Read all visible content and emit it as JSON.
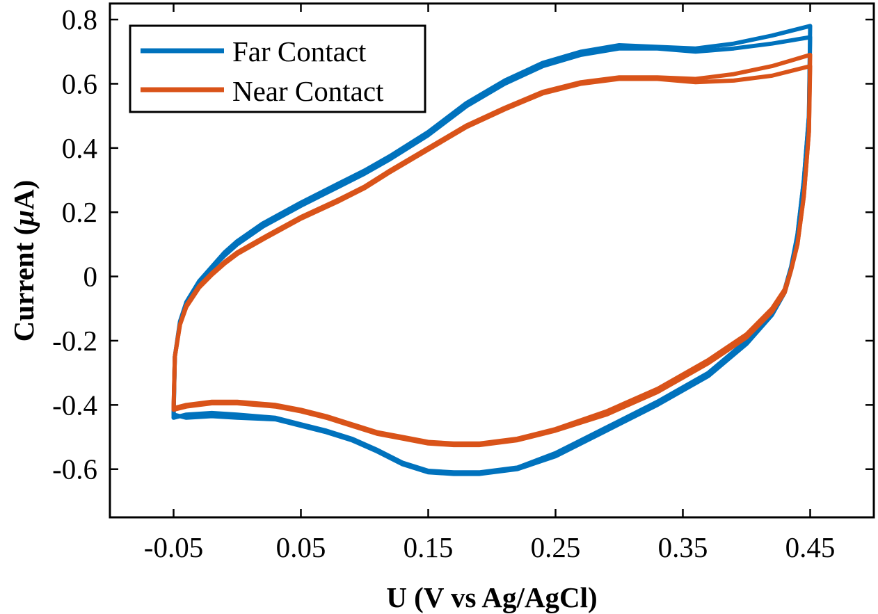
{
  "chart_data": {
    "type": "line",
    "xlabel": "U (V vs Ag/AgCl)",
    "ylabel_prefix": "Current (",
    "ylabel_mu": "μ",
    "ylabel_suffix": "A)",
    "xlim": [
      -0.1,
      0.5
    ],
    "ylim": [
      -0.75,
      0.85
    ],
    "x_ticks": [
      -0.05,
      0.05,
      0.15,
      0.25,
      0.35,
      0.45
    ],
    "x_tick_labels": [
      "-0.05",
      "0.05",
      "0.15",
      "0.25",
      "0.35",
      "0.45"
    ],
    "y_ticks": [
      -0.6,
      -0.4,
      -0.2,
      0,
      0.2,
      0.4,
      0.6,
      0.8
    ],
    "y_tick_labels": [
      "-0.6",
      "-0.4",
      "-0.2",
      "0",
      "0.2",
      "0.4",
      "0.6",
      "0.8"
    ],
    "grid": false,
    "legend_position": "top-left",
    "series": [
      {
        "name": "Far Contact",
        "color": "#0072BD",
        "cycles": [
          [
            [
              -0.05,
              -0.44
            ],
            [
              -0.049,
              -0.25
            ],
            [
              -0.045,
              -0.14
            ],
            [
              -0.04,
              -0.08
            ],
            [
              -0.03,
              -0.015
            ],
            [
              -0.02,
              0.03
            ],
            [
              -0.01,
              0.075
            ],
            [
              0.0,
              0.11
            ],
            [
              0.02,
              0.165
            ],
            [
              0.05,
              0.23
            ],
            [
              0.08,
              0.29
            ],
            [
              0.1,
              0.33
            ],
            [
              0.12,
              0.375
            ],
            [
              0.15,
              0.45
            ],
            [
              0.18,
              0.54
            ],
            [
              0.21,
              0.61
            ],
            [
              0.24,
              0.665
            ],
            [
              0.27,
              0.7
            ],
            [
              0.3,
              0.72
            ],
            [
              0.33,
              0.715
            ],
            [
              0.36,
              0.71
            ],
            [
              0.39,
              0.725
            ],
            [
              0.42,
              0.75
            ],
            [
              0.45,
              0.78
            ],
            [
              0.449,
              0.5
            ],
            [
              0.445,
              0.3
            ],
            [
              0.44,
              0.13
            ],
            [
              0.435,
              0.03
            ],
            [
              0.43,
              -0.04
            ],
            [
              0.42,
              -0.11
            ],
            [
              0.4,
              -0.2
            ],
            [
              0.37,
              -0.3
            ],
            [
              0.33,
              -0.39
            ],
            [
              0.29,
              -0.47
            ],
            [
              0.25,
              -0.55
            ],
            [
              0.22,
              -0.595
            ],
            [
              0.19,
              -0.61
            ],
            [
              0.17,
              -0.61
            ],
            [
              0.15,
              -0.605
            ],
            [
              0.13,
              -0.58
            ],
            [
              0.11,
              -0.54
            ],
            [
              0.09,
              -0.505
            ],
            [
              0.07,
              -0.48
            ],
            [
              0.05,
              -0.46
            ],
            [
              0.03,
              -0.44
            ],
            [
              0.0,
              -0.43
            ],
            [
              -0.02,
              -0.425
            ],
            [
              -0.04,
              -0.43
            ],
            [
              -0.05,
              -0.44
            ]
          ],
          [
            [
              -0.05,
              -0.43
            ],
            [
              -0.049,
              -0.25
            ],
            [
              -0.045,
              -0.145
            ],
            [
              -0.04,
              -0.09
            ],
            [
              -0.03,
              -0.02
            ],
            [
              -0.02,
              0.025
            ],
            [
              -0.01,
              0.065
            ],
            [
              0.0,
              0.1
            ],
            [
              0.02,
              0.155
            ],
            [
              0.05,
              0.22
            ],
            [
              0.08,
              0.28
            ],
            [
              0.1,
              0.32
            ],
            [
              0.12,
              0.365
            ],
            [
              0.15,
              0.44
            ],
            [
              0.18,
              0.53
            ],
            [
              0.21,
              0.6
            ],
            [
              0.24,
              0.655
            ],
            [
              0.27,
              0.69
            ],
            [
              0.3,
              0.71
            ],
            [
              0.33,
              0.71
            ],
            [
              0.36,
              0.7
            ],
            [
              0.39,
              0.71
            ],
            [
              0.42,
              0.725
            ],
            [
              0.45,
              0.745
            ],
            [
              0.449,
              0.5
            ],
            [
              0.445,
              0.3
            ],
            [
              0.44,
              0.13
            ],
            [
              0.435,
              0.02
            ],
            [
              0.43,
              -0.05
            ],
            [
              0.42,
              -0.12
            ],
            [
              0.4,
              -0.21
            ],
            [
              0.37,
              -0.31
            ],
            [
              0.33,
              -0.4
            ],
            [
              0.29,
              -0.48
            ],
            [
              0.25,
              -0.56
            ],
            [
              0.22,
              -0.6
            ],
            [
              0.19,
              -0.615
            ],
            [
              0.17,
              -0.615
            ],
            [
              0.15,
              -0.61
            ],
            [
              0.13,
              -0.585
            ],
            [
              0.11,
              -0.545
            ],
            [
              0.09,
              -0.51
            ],
            [
              0.07,
              -0.485
            ],
            [
              0.05,
              -0.465
            ],
            [
              0.03,
              -0.445
            ],
            [
              0.0,
              -0.44
            ],
            [
              -0.02,
              -0.435
            ],
            [
              -0.04,
              -0.44
            ],
            [
              -0.05,
              -0.43
            ]
          ]
        ]
      },
      {
        "name": "Near Contact",
        "color": "#D95319",
        "cycles": [
          [
            [
              -0.05,
              -0.41
            ],
            [
              -0.049,
              -0.25
            ],
            [
              -0.045,
              -0.15
            ],
            [
              -0.04,
              -0.09
            ],
            [
              -0.03,
              -0.03
            ],
            [
              -0.02,
              0.01
            ],
            [
              -0.01,
              0.045
            ],
            [
              0.0,
              0.075
            ],
            [
              0.02,
              0.12
            ],
            [
              0.05,
              0.185
            ],
            [
              0.08,
              0.24
            ],
            [
              0.1,
              0.28
            ],
            [
              0.12,
              0.33
            ],
            [
              0.15,
              0.4
            ],
            [
              0.18,
              0.47
            ],
            [
              0.21,
              0.525
            ],
            [
              0.24,
              0.575
            ],
            [
              0.27,
              0.605
            ],
            [
              0.3,
              0.62
            ],
            [
              0.33,
              0.62
            ],
            [
              0.36,
              0.615
            ],
            [
              0.39,
              0.63
            ],
            [
              0.42,
              0.655
            ],
            [
              0.45,
              0.69
            ],
            [
              0.449,
              0.45
            ],
            [
              0.445,
              0.25
            ],
            [
              0.44,
              0.1
            ],
            [
              0.435,
              0.02
            ],
            [
              0.43,
              -0.04
            ],
            [
              0.42,
              -0.1
            ],
            [
              0.4,
              -0.18
            ],
            [
              0.37,
              -0.26
            ],
            [
              0.33,
              -0.35
            ],
            [
              0.29,
              -0.42
            ],
            [
              0.25,
              -0.475
            ],
            [
              0.22,
              -0.505
            ],
            [
              0.19,
              -0.52
            ],
            [
              0.17,
              -0.52
            ],
            [
              0.15,
              -0.515
            ],
            [
              0.13,
              -0.5
            ],
            [
              0.11,
              -0.485
            ],
            [
              0.09,
              -0.46
            ],
            [
              0.07,
              -0.435
            ],
            [
              0.05,
              -0.415
            ],
            [
              0.03,
              -0.4
            ],
            [
              0.0,
              -0.39
            ],
            [
              -0.02,
              -0.39
            ],
            [
              -0.04,
              -0.4
            ],
            [
              -0.05,
              -0.41
            ]
          ],
          [
            [
              -0.05,
              -0.415
            ],
            [
              -0.049,
              -0.25
            ],
            [
              -0.045,
              -0.15
            ],
            [
              -0.04,
              -0.095
            ],
            [
              -0.03,
              -0.035
            ],
            [
              -0.02,
              0.005
            ],
            [
              -0.01,
              0.04
            ],
            [
              0.0,
              0.07
            ],
            [
              0.02,
              0.115
            ],
            [
              0.05,
              0.18
            ],
            [
              0.08,
              0.235
            ],
            [
              0.1,
              0.275
            ],
            [
              0.12,
              0.325
            ],
            [
              0.15,
              0.395
            ],
            [
              0.18,
              0.465
            ],
            [
              0.21,
              0.52
            ],
            [
              0.24,
              0.57
            ],
            [
              0.27,
              0.6
            ],
            [
              0.3,
              0.615
            ],
            [
              0.33,
              0.615
            ],
            [
              0.36,
              0.605
            ],
            [
              0.39,
              0.61
            ],
            [
              0.42,
              0.625
            ],
            [
              0.45,
              0.655
            ],
            [
              0.449,
              0.45
            ],
            [
              0.445,
              0.25
            ],
            [
              0.44,
              0.1
            ],
            [
              0.435,
              0.02
            ],
            [
              0.43,
              -0.05
            ],
            [
              0.42,
              -0.11
            ],
            [
              0.4,
              -0.19
            ],
            [
              0.37,
              -0.27
            ],
            [
              0.33,
              -0.36
            ],
            [
              0.29,
              -0.43
            ],
            [
              0.25,
              -0.48
            ],
            [
              0.22,
              -0.51
            ],
            [
              0.19,
              -0.525
            ],
            [
              0.17,
              -0.525
            ],
            [
              0.15,
              -0.52
            ],
            [
              0.13,
              -0.505
            ],
            [
              0.11,
              -0.49
            ],
            [
              0.09,
              -0.465
            ],
            [
              0.07,
              -0.44
            ],
            [
              0.05,
              -0.42
            ],
            [
              0.03,
              -0.405
            ],
            [
              0.0,
              -0.395
            ],
            [
              -0.02,
              -0.395
            ],
            [
              -0.04,
              -0.405
            ],
            [
              -0.05,
              -0.415
            ]
          ]
        ]
      }
    ]
  }
}
